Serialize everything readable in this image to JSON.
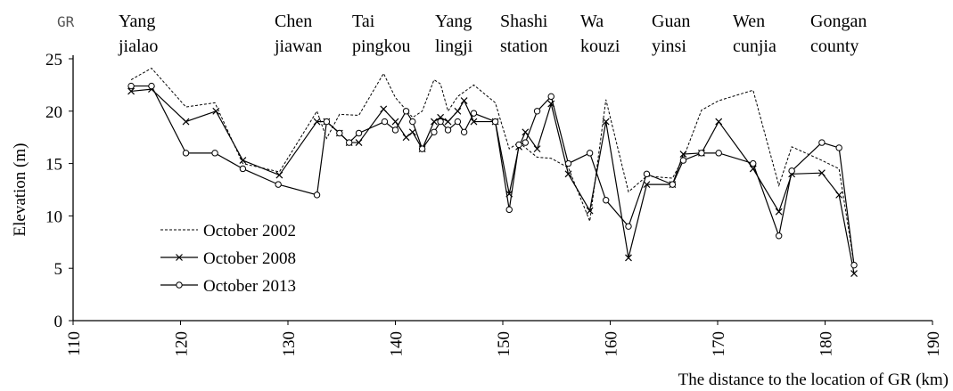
{
  "chart_data": {
    "type": "line",
    "places": [
      [
        "GR"
      ],
      [
        "Yang",
        "jialao"
      ],
      [
        "Chen",
        "jiawan"
      ],
      [
        "Tai",
        "pingkou"
      ],
      [
        "Yang",
        "lingji"
      ],
      [
        "Shashi",
        "station"
      ],
      [
        "Wa",
        "kouzi"
      ],
      [
        "Guan",
        "yinsi"
      ],
      [
        "Wen",
        "cunjia"
      ],
      [
        "Gongan",
        "county"
      ]
    ],
    "xlabel": "The distance to the location of GR (km)",
    "ylabel": "Elevation (m)",
    "xlim": [
      110,
      190
    ],
    "xticks": [
      110,
      120,
      130,
      140,
      150,
      160,
      170,
      180,
      190
    ],
    "ylim": [
      0,
      25
    ],
    "yticks": [
      0,
      5,
      10,
      15,
      20,
      25
    ],
    "legend": "center left",
    "series": [
      {
        "name": "October 2002",
        "color": "#000000",
        "dashed": true,
        "marker": "none",
        "x": [
          115.4,
          117.3,
          120.5,
          123.2,
          125.8,
          129.2,
          132.7,
          133.6,
          134.8,
          136.6,
          138.9,
          140.0,
          141.6,
          142.5,
          143.6,
          144.2,
          144.9,
          145.8,
          147.3,
          149.3,
          150.6,
          151.5,
          153.2,
          154.5,
          156.1,
          158.1,
          159.6,
          161.7,
          163.4,
          165.8,
          166.8,
          168.5,
          170.1,
          173.3,
          175.7,
          176.9,
          179.7,
          181.3,
          182.7
        ],
        "values": [
          23.0,
          24.1,
          20.4,
          20.8,
          15.0,
          14.2,
          20.0,
          17.4,
          19.7,
          19.6,
          23.6,
          21.3,
          19.4,
          20.0,
          23.0,
          22.6,
          20.0,
          21.4,
          22.5,
          20.8,
          16.4,
          17.0,
          15.6,
          15.5,
          14.6,
          9.5,
          21.1,
          12.3,
          13.8,
          13.6,
          15.5,
          20.1,
          21.0,
          22.0,
          12.9,
          16.6,
          15.3,
          14.5,
          5.4
        ]
      },
      {
        "name": "October 2008",
        "color": "#000000",
        "dashed": false,
        "marker": "x",
        "x": [
          115.4,
          117.3,
          120.5,
          123.3,
          125.8,
          129.2,
          132.7,
          133.6,
          134.8,
          135.7,
          136.6,
          138.9,
          140.0,
          141.0,
          141.6,
          142.5,
          143.6,
          144.2,
          144.9,
          145.8,
          146.4,
          147.3,
          149.3,
          150.6,
          151.5,
          152.1,
          153.2,
          154.5,
          156.1,
          158.1,
          159.6,
          161.7,
          163.4,
          165.8,
          166.8,
          168.5,
          170.1,
          173.3,
          175.7,
          176.9,
          179.7,
          181.3,
          182.7
        ],
        "values": [
          21.9,
          22.1,
          19.0,
          20.0,
          15.3,
          13.9,
          19.0,
          19.0,
          17.9,
          17.0,
          17.0,
          20.2,
          19.0,
          17.5,
          18.0,
          16.4,
          19.0,
          19.4,
          19.0,
          20.0,
          21.0,
          19.0,
          19.0,
          12.1,
          16.6,
          18.0,
          16.4,
          20.7,
          14.0,
          10.5,
          19.0,
          6.0,
          13.0,
          13.0,
          15.9,
          16.0,
          19.0,
          14.5,
          10.4,
          14.0,
          14.1,
          12.0,
          4.5
        ]
      },
      {
        "name": "October 2013",
        "color": "#000000",
        "dashed": false,
        "marker": "circle",
        "x": [
          115.4,
          117.3,
          120.5,
          123.2,
          125.8,
          129.1,
          132.7,
          133.6,
          134.8,
          135.7,
          136.6,
          139.0,
          140.0,
          141.0,
          141.6,
          142.5,
          143.6,
          144.2,
          144.9,
          145.8,
          146.4,
          147.3,
          149.3,
          150.6,
          151.5,
          152.1,
          153.2,
          154.5,
          156.1,
          158.1,
          159.6,
          161.7,
          163.4,
          165.8,
          166.8,
          168.5,
          170.1,
          173.3,
          175.7,
          176.9,
          179.7,
          181.3,
          182.7
        ],
        "values": [
          22.4,
          22.4,
          16.0,
          16.0,
          14.5,
          13.0,
          12.0,
          19.0,
          17.9,
          17.0,
          17.9,
          19.0,
          18.2,
          20.0,
          19.0,
          16.4,
          18.0,
          19.0,
          18.2,
          19.0,
          18.0,
          19.8,
          19.0,
          10.6,
          16.8,
          17.0,
          20.0,
          21.4,
          15.0,
          16.0,
          11.5,
          9.0,
          14.0,
          13.0,
          15.3,
          16.0,
          16.0,
          15.0,
          8.1,
          14.3,
          17.0,
          16.5,
          5.3
        ]
      }
    ]
  }
}
